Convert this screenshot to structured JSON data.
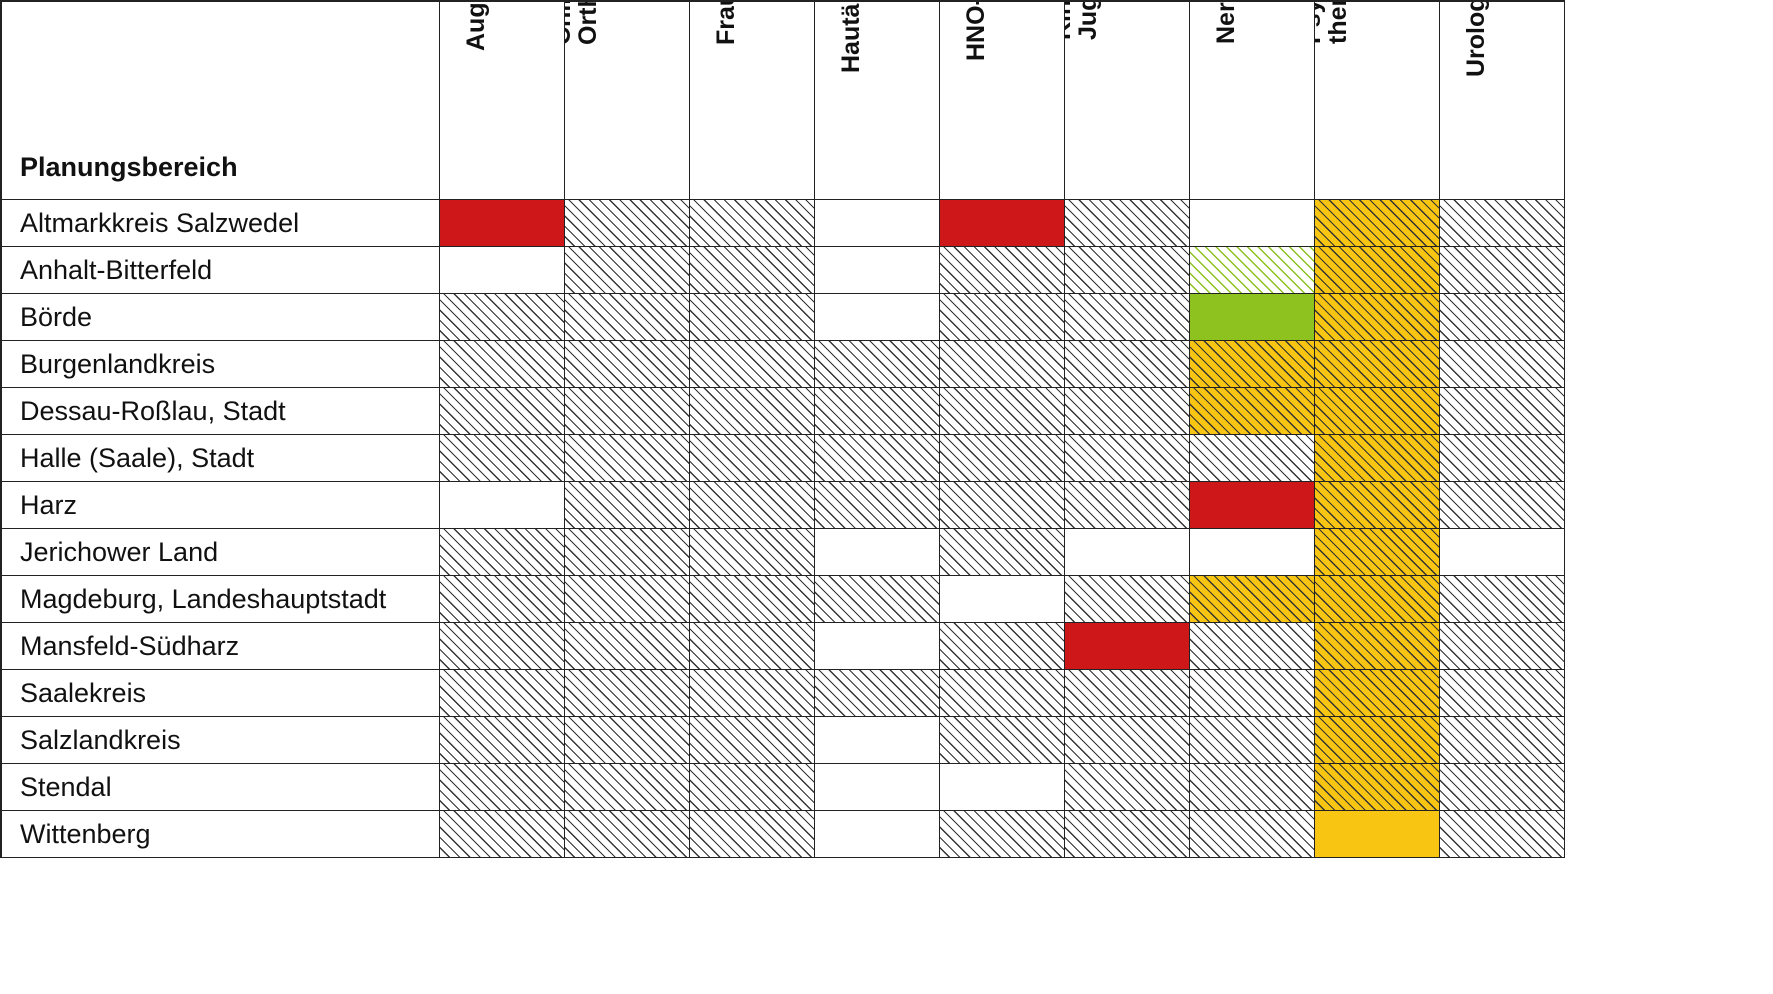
{
  "table": {
    "header_label": "Planungsbereich",
    "columns": [
      "Augenärzte",
      "Chirurgen/\nOrthopäden",
      "Frauenärzte",
      "Hautärzte",
      "HNO-Ärzte",
      "Kinder- und\nJugendärzte",
      "Nervenärzte",
      "Psycho-\ntherapeuten",
      "Urologen"
    ],
    "rows": [
      {
        "name": "Altmarkkreis Salzwedel",
        "cells": [
          "solid-red",
          "hatch-grey",
          "hatch-grey",
          "white",
          "solid-red",
          "hatch-grey",
          "white",
          "hatch-yellow",
          "hatch-grey"
        ]
      },
      {
        "name": "Anhalt-Bitterfeld",
        "cells": [
          "white",
          "hatch-grey",
          "hatch-grey",
          "white",
          "hatch-grey",
          "hatch-grey",
          "hatch-green",
          "hatch-yellow",
          "hatch-grey"
        ]
      },
      {
        "name": "Börde",
        "cells": [
          "hatch-grey",
          "hatch-grey",
          "hatch-grey",
          "white",
          "hatch-grey",
          "hatch-grey",
          "solid-green",
          "hatch-yellow",
          "hatch-grey"
        ]
      },
      {
        "name": "Burgenlandkreis",
        "cells": [
          "hatch-grey",
          "hatch-grey",
          "hatch-grey",
          "hatch-grey",
          "hatch-grey",
          "hatch-grey",
          "hatch-yellow",
          "hatch-yellow",
          "hatch-grey"
        ]
      },
      {
        "name": "Dessau-Roßlau, Stadt",
        "cells": [
          "hatch-grey",
          "hatch-grey",
          "hatch-grey",
          "hatch-grey",
          "hatch-grey",
          "hatch-grey",
          "hatch-yellow",
          "hatch-yellow",
          "hatch-grey"
        ]
      },
      {
        "name": "Halle (Saale), Stadt",
        "cells": [
          "hatch-grey",
          "hatch-grey",
          "hatch-grey",
          "hatch-grey",
          "hatch-grey",
          "hatch-grey",
          "hatch-grey",
          "hatch-yellow",
          "hatch-grey"
        ]
      },
      {
        "name": "Harz",
        "cells": [
          "white",
          "hatch-grey",
          "hatch-grey",
          "hatch-grey",
          "hatch-grey",
          "hatch-grey",
          "solid-red",
          "hatch-yellow",
          "hatch-grey"
        ]
      },
      {
        "name": "Jerichower Land",
        "cells": [
          "hatch-grey",
          "hatch-grey",
          "hatch-grey",
          "white",
          "hatch-grey",
          "white",
          "white",
          "hatch-yellow",
          "white"
        ]
      },
      {
        "name": "Magdeburg, Landeshauptstadt",
        "cells": [
          "hatch-grey",
          "hatch-grey",
          "hatch-grey",
          "hatch-grey",
          "white",
          "hatch-grey",
          "hatch-yellow",
          "hatch-yellow",
          "hatch-grey"
        ]
      },
      {
        "name": "Mansfeld-Südharz",
        "cells": [
          "hatch-grey",
          "hatch-grey",
          "hatch-grey",
          "white",
          "hatch-grey",
          "solid-red",
          "hatch-grey",
          "hatch-yellow",
          "hatch-grey"
        ]
      },
      {
        "name": "Saalekreis",
        "cells": [
          "hatch-grey",
          "hatch-grey",
          "hatch-grey",
          "hatch-grey",
          "hatch-grey",
          "hatch-grey",
          "hatch-grey",
          "hatch-yellow",
          "hatch-grey"
        ]
      },
      {
        "name": "Salzlandkreis",
        "cells": [
          "hatch-grey",
          "hatch-grey",
          "hatch-grey",
          "white",
          "hatch-grey",
          "hatch-grey",
          "hatch-grey",
          "hatch-yellow",
          "hatch-grey"
        ]
      },
      {
        "name": "Stendal",
        "cells": [
          "hatch-grey",
          "hatch-grey",
          "hatch-grey",
          "white",
          "white",
          "hatch-grey",
          "hatch-grey",
          "hatch-yellow",
          "hatch-grey"
        ]
      },
      {
        "name": "Wittenberg",
        "cells": [
          "hatch-grey",
          "hatch-grey",
          "hatch-grey",
          "white",
          "hatch-grey",
          "hatch-grey",
          "hatch-grey",
          "solid-yellow",
          "hatch-grey"
        ]
      }
    ]
  },
  "colors": {
    "red": "#cd1719",
    "green": "#8dc21f",
    "yellow": "#f8c612",
    "hatch": "#333333",
    "border": "#222222"
  }
}
